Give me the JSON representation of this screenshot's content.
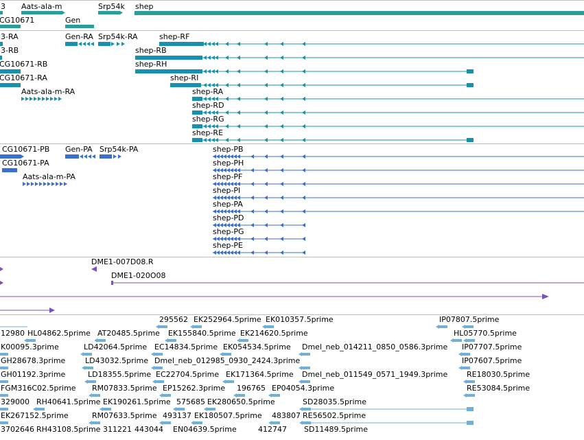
{
  "colors": {
    "gene": "#2a9d9a",
    "transcript": "#1791ad",
    "protein": "#3a6fcf",
    "cdna": "#7a52b8",
    "est": "#6fb0d8",
    "separator": "#bfbfbf"
  },
  "tracks": {
    "genes": {
      "labels": [
        {
          "id": "gene-3",
          "text": "3"
        },
        {
          "id": "gene-aats",
          "text": "Aats-ala-m"
        },
        {
          "id": "gene-srp54k",
          "text": "Srp54k"
        },
        {
          "id": "gene-shep",
          "text": "shep"
        },
        {
          "id": "gene-cg10671",
          "text": "CG10671"
        },
        {
          "id": "gene-gen",
          "text": "Gen"
        }
      ]
    },
    "transcripts": {
      "labels": [
        {
          "id": "t-3-ra",
          "text": "3-RA"
        },
        {
          "id": "t-gen-ra",
          "text": "Gen-RA"
        },
        {
          "id": "t-srp54k-ra",
          "text": "Srp54k-RA"
        },
        {
          "id": "t-shep-rf",
          "text": "shep-RF"
        },
        {
          "id": "t-3-rb",
          "text": "3-RB"
        },
        {
          "id": "t-shep-rb",
          "text": "shep-RB"
        },
        {
          "id": "t-cg10671-rb",
          "text": "CG10671-RB"
        },
        {
          "id": "t-shep-rh",
          "text": "shep-RH"
        },
        {
          "id": "t-cg10671-ra",
          "text": "CG10671-RA"
        },
        {
          "id": "t-shep-ri",
          "text": "shep-RI"
        },
        {
          "id": "t-aats-ra",
          "text": "Aats-ala-m-RA"
        },
        {
          "id": "t-shep-ra",
          "text": "shep-RA"
        },
        {
          "id": "t-shep-rd",
          "text": "shep-RD"
        },
        {
          "id": "t-shep-rg",
          "text": "shep-RG"
        },
        {
          "id": "t-shep-re",
          "text": "shep-RE"
        }
      ]
    },
    "proteins": {
      "labels": [
        {
          "id": "p-cg10671-pb",
          "text": "CG10671-PB"
        },
        {
          "id": "p-gen-pa",
          "text": "Gen-PA"
        },
        {
          "id": "p-srp54k-pa",
          "text": "Srp54k-PA"
        },
        {
          "id": "p-shep-pb",
          "text": "shep-PB"
        },
        {
          "id": "p-cg10671-pa",
          "text": "CG10671-PA"
        },
        {
          "id": "p-shep-ph",
          "text": "shep-PH"
        },
        {
          "id": "p-aats-pa",
          "text": "Aats-ala-m-PA"
        },
        {
          "id": "p-shep-pf",
          "text": "shep-PF"
        },
        {
          "id": "p-shep-pi",
          "text": "shep-PI"
        },
        {
          "id": "p-shep-pa",
          "text": "shep-PA"
        },
        {
          "id": "p-shep-pd",
          "text": "shep-PD"
        },
        {
          "id": "p-shep-pg",
          "text": "shep-PG"
        },
        {
          "id": "p-shep-pe",
          "text": "shep-PE"
        }
      ]
    },
    "cdna": {
      "labels": [
        {
          "id": "c-dme1-007d08",
          "text": "DME1-007D08.R"
        },
        {
          "id": "c-dme1-020o08",
          "text": "DME1-020O08"
        }
      ]
    },
    "ests": {
      "labels": [
        {
          "id": "e-1",
          "text": "295562"
        },
        {
          "id": "e-2",
          "text": "EK252964.5prime"
        },
        {
          "id": "e-3",
          "text": "EK010357.5prime"
        },
        {
          "id": "e-4",
          "text": "IP07807.5prime"
        },
        {
          "id": "e-5",
          "text": "12980"
        },
        {
          "id": "e-6",
          "text": "HL04862.5prime"
        },
        {
          "id": "e-7",
          "text": "AT20485.5prime"
        },
        {
          "id": "e-8",
          "text": "EK155840.5prime"
        },
        {
          "id": "e-9",
          "text": "EK214620.5prime"
        },
        {
          "id": "e-10",
          "text": "HL05770.5prime"
        },
        {
          "id": "e-11",
          "text": "K00095.3prime"
        },
        {
          "id": "e-12",
          "text": "LD42064.5prime"
        },
        {
          "id": "e-13",
          "text": "EC14834.5prime"
        },
        {
          "id": "e-14",
          "text": "EK054534.5prime"
        },
        {
          "id": "e-15",
          "text": "Dmel_neb_014211_0850_0586.3prime"
        },
        {
          "id": "e-16",
          "text": "IP07707.5prime"
        },
        {
          "id": "e-17",
          "text": "GH28678.3prime"
        },
        {
          "id": "e-18",
          "text": "LD43032.5prime"
        },
        {
          "id": "e-19",
          "text": "Dmel_neb_012985_0930_2424.3prime"
        },
        {
          "id": "e-20",
          "text": "IP07607.5prime"
        },
        {
          "id": "e-21",
          "text": "GH01192.3prime"
        },
        {
          "id": "e-22",
          "text": "LD18355.5prime"
        },
        {
          "id": "e-23",
          "text": "EC22704.5prime"
        },
        {
          "id": "e-24",
          "text": "EK171364.5prime"
        },
        {
          "id": "e-25",
          "text": "Dmel_neb_011549_0571_1949.3prime"
        },
        {
          "id": "e-26",
          "text": "RE18030.5prime"
        },
        {
          "id": "e-27",
          "text": "FGM316C02.5prime"
        },
        {
          "id": "e-28",
          "text": "RM07833.5prime"
        },
        {
          "id": "e-29",
          "text": "EP15262.3prime"
        },
        {
          "id": "e-30",
          "text": "196765"
        },
        {
          "id": "e-31",
          "text": "EP04054.3prime"
        },
        {
          "id": "e-32",
          "text": "RE53084.5prime"
        },
        {
          "id": "e-33",
          "text": "329000"
        },
        {
          "id": "e-34",
          "text": "RH40641.5prime"
        },
        {
          "id": "e-35",
          "text": "EK190261.5prime"
        },
        {
          "id": "e-36",
          "text": "575685"
        },
        {
          "id": "e-37",
          "text": "EK280650.5prime"
        },
        {
          "id": "e-38",
          "text": "SD28035.5prime"
        },
        {
          "id": "e-39",
          "text": "EK267152.5prime"
        },
        {
          "id": "e-40",
          "text": "RM07633.5prime"
        },
        {
          "id": "e-41",
          "text": "493137"
        },
        {
          "id": "e-42",
          "text": "EK180507.5prime"
        },
        {
          "id": "e-43",
          "text": "483807"
        },
        {
          "id": "e-44",
          "text": "RE56502.5prime"
        },
        {
          "id": "e-45",
          "text": "3702646"
        },
        {
          "id": "e-46",
          "text": "RH43108.5prime"
        },
        {
          "id": "e-47",
          "text": "311221"
        },
        {
          "id": "e-48",
          "text": "443044"
        },
        {
          "id": "e-49",
          "text": "EN04639.5prime"
        },
        {
          "id": "e-50",
          "text": "412747"
        },
        {
          "id": "e-51",
          "text": "SD11489.5prime"
        }
      ]
    }
  }
}
